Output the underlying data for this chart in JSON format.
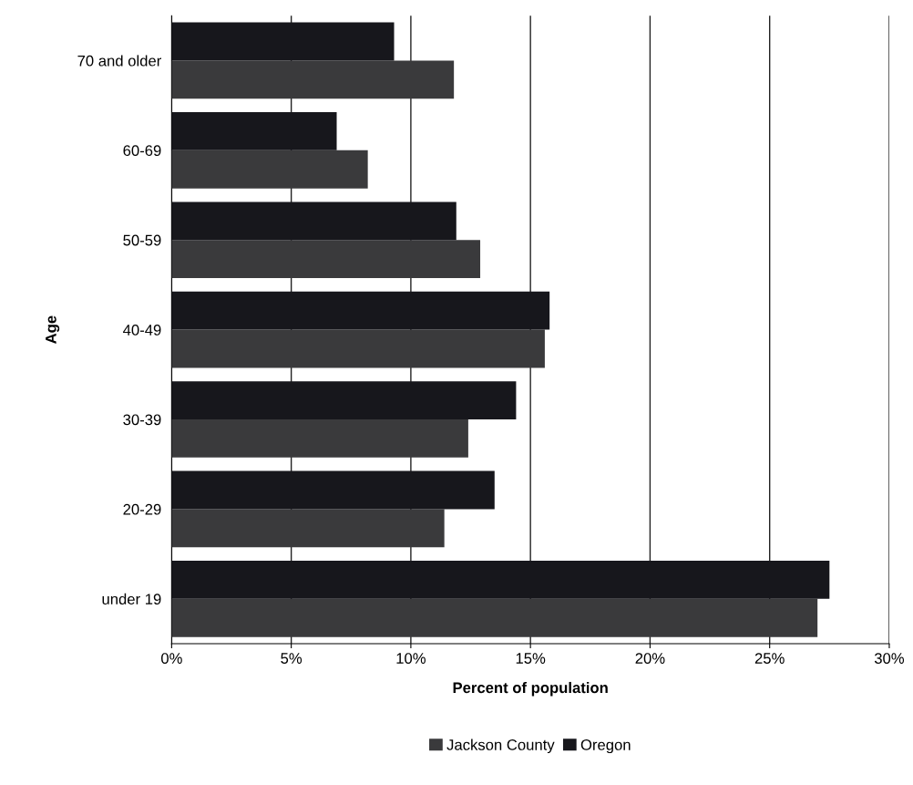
{
  "chart_data": {
    "type": "bar",
    "orientation": "horizontal",
    "xlabel": "Percent of population",
    "ylabel": "Age",
    "categories": [
      "70 and older",
      "60-69",
      "50-59",
      "40-49",
      "30-39",
      "20-29",
      "under 19"
    ],
    "series": [
      {
        "name": "Jackson County",
        "color": "#3a3a3c",
        "values": [
          11.8,
          8.2,
          12.9,
          15.6,
          12.4,
          11.4,
          27.0
        ]
      },
      {
        "name": "Oregon",
        "color": "#17171c",
        "values": [
          9.3,
          6.9,
          11.9,
          15.8,
          14.4,
          13.5,
          27.5
        ]
      }
    ],
    "xlim": [
      0,
      30
    ],
    "xticks": [
      {
        "value": 0,
        "label": "0%"
      },
      {
        "value": 5,
        "label": "5%"
      },
      {
        "value": 10,
        "label": "10%"
      },
      {
        "value": 15,
        "label": "15%"
      },
      {
        "value": 20,
        "label": "20%"
      },
      {
        "value": 25,
        "label": "25%"
      },
      {
        "value": 30,
        "label": "30%"
      }
    ],
    "grid": "x",
    "legend": "bottom"
  }
}
